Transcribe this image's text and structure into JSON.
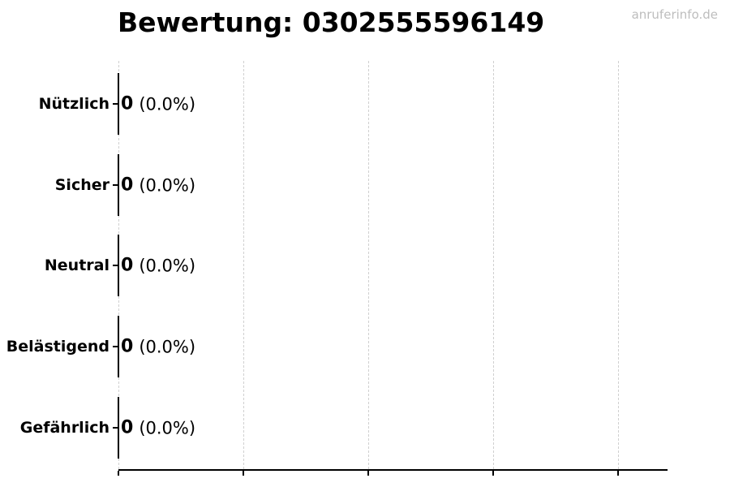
{
  "header": {
    "watermark": "anruferinfo.de"
  },
  "chart_data": {
    "type": "bar",
    "orientation": "horizontal",
    "title": "Bewertung: 0302555596149",
    "categories": [
      "Nützlich",
      "Sicher",
      "Neutral",
      "Belästigend",
      "Gefährlich"
    ],
    "values": [
      0,
      0,
      0,
      0,
      0
    ],
    "percentages": [
      0.0,
      0.0,
      0.0,
      0.0,
      0.0
    ],
    "value_labels": [
      {
        "count": "0",
        "pct": "(0.0%)"
      },
      {
        "count": "0",
        "pct": "(0.0%)"
      },
      {
        "count": "0",
        "pct": "(0.0%)"
      },
      {
        "count": "0",
        "pct": "(0.0%)"
      },
      {
        "count": "0",
        "pct": "(0.0%)"
      }
    ],
    "xlabel": "",
    "ylabel": "",
    "grid": "vertical-dashed",
    "legend": "none",
    "x_tick_labels_visible": false,
    "colors": {
      "bar_edge": "#000000",
      "grid": "#d0d0d0",
      "text": "#000000",
      "watermark": "#bdbdbd",
      "background": "#ffffff"
    }
  }
}
